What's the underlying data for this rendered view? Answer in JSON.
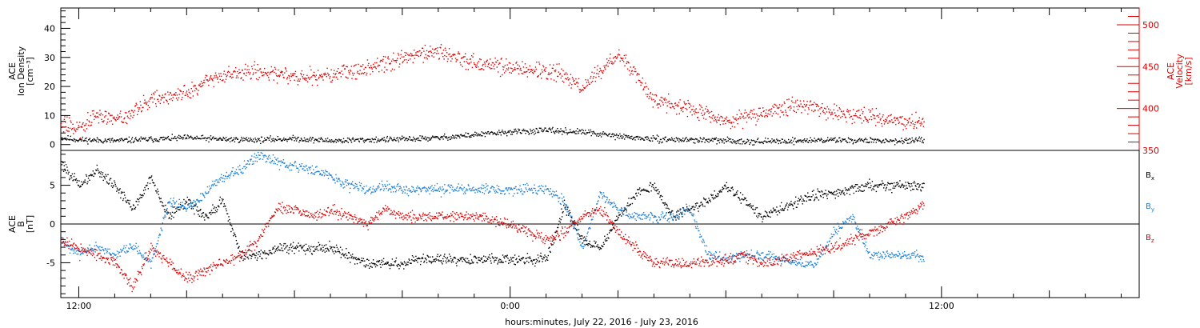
{
  "chart_data": [
    {
      "type": "scatter",
      "panel": "top",
      "left_axis": {
        "label_lines": [
          "ACE",
          "Ion Density",
          "[cm⁻³]"
        ],
        "ylim": [
          -2,
          47
        ],
        "ticks": [
          0,
          10,
          20,
          30,
          40
        ],
        "color": "#000000"
      },
      "right_axis": {
        "label_lines": [
          "ACE",
          "Velocity",
          "[km/s]"
        ],
        "ylim": [
          350,
          520
        ],
        "ticks": [
          350,
          400,
          450,
          500
        ],
        "color": "#dd0000"
      },
      "series": [
        {
          "axis": "left",
          "color": "#000000",
          "x": [
            11.5,
            12,
            13,
            14,
            15,
            16,
            17,
            18,
            19,
            20,
            21,
            22,
            23,
            24,
            25,
            26,
            27,
            28,
            29,
            30,
            31,
            32,
            33,
            34,
            35,
            35.5
          ],
          "y": [
            2.5,
            1.8,
            1.5,
            2.0,
            2.5,
            2.0,
            1.8,
            2.2,
            1.5,
            1.8,
            2.0,
            2.5,
            3.5,
            4.5,
            5.0,
            4.5,
            3.0,
            2.0,
            1.8,
            1.5,
            1.2,
            1.5,
            1.8,
            1.5,
            1.5,
            1.5
          ]
        },
        {
          "axis": "right",
          "color": "#dd0000",
          "x": [
            11.5,
            12,
            12.5,
            13,
            14,
            15,
            16,
            17,
            18,
            19,
            20,
            21,
            22,
            23,
            24,
            25,
            25.5,
            26,
            26.5,
            27,
            27.5,
            28,
            29,
            30,
            31,
            32,
            33,
            34,
            35,
            35.5
          ],
          "y": [
            385,
            375,
            395,
            385,
            410,
            420,
            440,
            445,
            440,
            440,
            448,
            460,
            470,
            455,
            450,
            445,
            440,
            425,
            445,
            465,
            440,
            410,
            400,
            385,
            395,
            405,
            395,
            390,
            385,
            383
          ]
        }
      ]
    },
    {
      "type": "scatter",
      "panel": "bottom",
      "left_axis": {
        "label_lines": [
          "ACE",
          "B",
          "[nT]"
        ],
        "ylim": [
          -9.5,
          9.5
        ],
        "ticks": [
          -5,
          0,
          5
        ],
        "color": "#000000"
      },
      "zero_line": true,
      "legend_position": "right",
      "series": [
        {
          "name": "Bx",
          "label_main": "B",
          "label_sub": "x",
          "color": "#000000",
          "x": [
            11.5,
            12,
            12.5,
            13,
            13.5,
            14,
            14.5,
            15,
            15.5,
            16,
            16.5,
            17,
            17.5,
            18,
            19,
            20,
            20.5,
            21,
            21.5,
            22,
            23,
            24,
            25,
            25.5,
            26,
            26.5,
            27,
            27.5,
            28,
            28.5,
            29,
            29.5,
            30,
            30.5,
            31,
            32,
            32.5,
            33,
            34,
            35,
            35.5
          ],
          "y": [
            8,
            5,
            7,
            5,
            2,
            6,
            1,
            3,
            1,
            3,
            -4,
            -4,
            -3,
            -3,
            -3,
            -5,
            -5,
            -5,
            -4.5,
            -4.5,
            -4.5,
            -4.5,
            -4.5,
            2.5,
            -2,
            -3,
            1,
            4,
            5,
            1,
            2,
            3,
            5,
            3,
            1,
            3,
            4,
            4,
            5,
            5,
            4.8
          ]
        },
        {
          "name": "By",
          "label_main": "B",
          "label_sub": "y",
          "color": "#1a7fd6",
          "x": [
            11.5,
            12,
            12.5,
            13,
            13.5,
            14,
            14.5,
            15,
            15.5,
            16,
            16.5,
            17,
            17.5,
            18,
            19,
            19.5,
            20,
            20.5,
            21,
            22,
            23,
            24,
            25,
            25.5,
            26,
            26.5,
            27,
            27.5,
            28,
            28.5,
            29,
            29.5,
            30,
            30.5,
            31,
            32,
            32.5,
            33,
            33.5,
            34,
            35,
            35.5
          ],
          "y": [
            -2,
            -4,
            -3,
            -4,
            -3,
            -5,
            3,
            2,
            4,
            6,
            7,
            9,
            8,
            7.5,
            6.5,
            5,
            4.5,
            5,
            4.5,
            4.5,
            4.5,
            4.5,
            4.5,
            3,
            -3,
            4,
            2,
            1,
            1,
            1,
            2,
            -4,
            -4.5,
            -4,
            -4,
            -5,
            -5,
            -1,
            1,
            -4,
            -4,
            -4.3
          ]
        },
        {
          "name": "Bz",
          "label_main": "B",
          "label_sub": "z",
          "color": "#dd0000",
          "x": [
            11.5,
            12,
            12.5,
            13,
            13.5,
            14,
            14.5,
            15,
            15.5,
            16,
            16.5,
            17,
            17.5,
            18,
            18.5,
            19,
            20,
            20.5,
            21,
            22,
            23,
            24,
            24.5,
            25,
            25.5,
            26,
            26.5,
            27,
            27.5,
            28,
            29,
            30,
            30.5,
            31,
            32,
            33,
            34,
            35,
            35.5
          ],
          "y": [
            -2,
            -3,
            -4,
            -5,
            -8,
            -3,
            -5,
            -7,
            -6,
            -5,
            -4,
            -2,
            2,
            2,
            1,
            2,
            0,
            2,
            1,
            1,
            1,
            0,
            -1,
            -2,
            -1,
            1,
            2,
            -1,
            -3,
            -5,
            -5,
            -4.5,
            -4,
            -5,
            -4,
            -3,
            -1,
            1,
            2.5
          ]
        }
      ]
    }
  ],
  "x_axis": {
    "label": "hours:minutes, July 22, 2016 - July 23, 2016",
    "xlim": [
      11.5,
      41.5
    ],
    "tick_labels": [
      {
        "x": 12,
        "label": "12:00"
      },
      {
        "x": 24,
        "label": "0:00"
      },
      {
        "x": 36,
        "label": "12:00"
      }
    ]
  }
}
